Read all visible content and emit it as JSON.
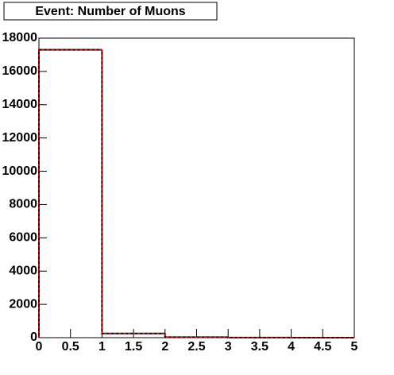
{
  "chart_data": {
    "type": "histogram",
    "title": "Event: Number of Muons",
    "bins": [
      0,
      1,
      2,
      3,
      4,
      5
    ],
    "counts": [
      17300,
      250,
      30,
      5,
      0
    ],
    "color": "#000000",
    "overlay_color": "#ff0000",
    "xlim": [
      0,
      5
    ],
    "xticks": [
      0,
      0.5,
      1,
      1.5,
      2,
      2.5,
      3,
      3.5,
      4,
      4.5,
      5
    ],
    "ylim": [
      0,
      18000
    ],
    "yticks": [
      0,
      2000,
      4000,
      6000,
      8000,
      10000,
      12000,
      14000,
      16000,
      18000
    ]
  }
}
